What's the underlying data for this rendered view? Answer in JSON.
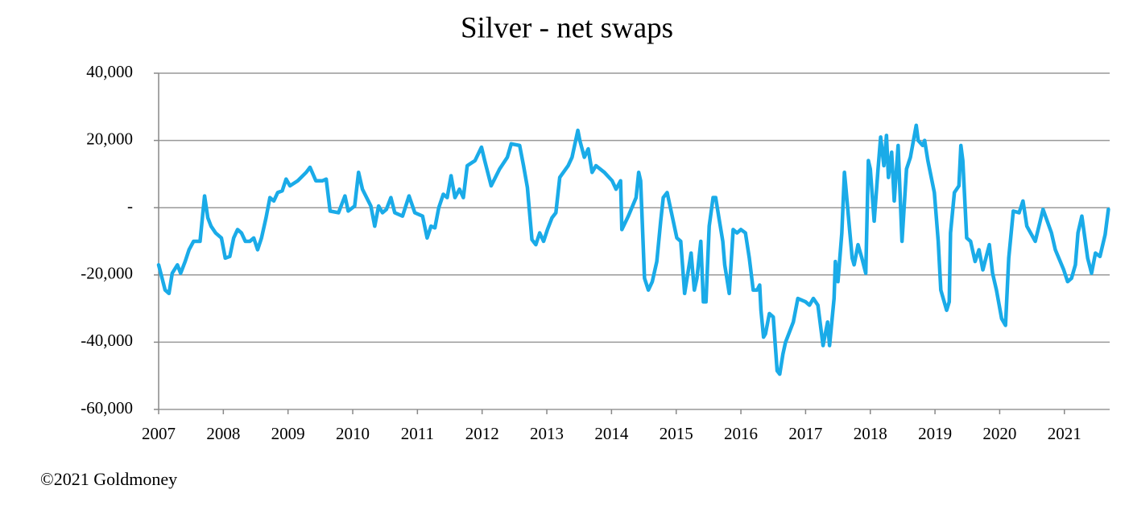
{
  "chart_data": {
    "type": "line",
    "title": "Silver - net swaps",
    "source": "©2021 Goldmoney",
    "color": "#1aabe8",
    "grid": true,
    "xlim": [
      2007,
      2021.7
    ],
    "xticks": [
      2007,
      2008,
      2009,
      2010,
      2011,
      2012,
      2013,
      2014,
      2015,
      2016,
      2017,
      2018,
      2019,
      2020,
      2021
    ],
    "ylim": [
      -60000,
      40000
    ],
    "yticks": [
      {
        "value": -60000,
        "label": "-60,000"
      },
      {
        "value": -40000,
        "label": "-40,000"
      },
      {
        "value": -20000,
        "label": "-20,000"
      },
      {
        "value": 0,
        "label": "-"
      },
      {
        "value": 20000,
        "label": "20,000"
      },
      {
        "value": 40000,
        "label": "40,000"
      }
    ],
    "x": [
      2007.0,
      2007.1,
      2007.16,
      2007.21,
      2007.29,
      2007.34,
      2007.41,
      2007.47,
      2007.54,
      2007.64,
      2007.71,
      2007.76,
      2007.81,
      2007.88,
      2007.97,
      2008.03,
      2008.1,
      2008.16,
      2008.22,
      2008.28,
      2008.34,
      2008.41,
      2008.47,
      2008.53,
      2008.59,
      2008.66,
      2008.72,
      2008.78,
      2008.84,
      2008.91,
      2008.97,
      2009.03,
      2009.15,
      2009.28,
      2009.34,
      2009.43,
      2009.53,
      2009.59,
      2009.65,
      2009.78,
      2009.88,
      2009.93,
      2010.03,
      2010.09,
      2010.15,
      2010.28,
      2010.34,
      2010.4,
      2010.46,
      2010.52,
      2010.59,
      2010.65,
      2010.77,
      2010.87,
      2010.96,
      2011.08,
      2011.15,
      2011.21,
      2011.27,
      2011.33,
      2011.4,
      2011.46,
      2011.52,
      2011.58,
      2011.65,
      2011.71,
      2011.77,
      2011.89,
      2011.99,
      2012.04,
      2012.14,
      2012.27,
      2012.39,
      2012.45,
      2012.58,
      2012.64,
      2012.7,
      2012.77,
      2012.83,
      2012.89,
      2012.95,
      2013.01,
      2013.08,
      2013.14,
      2013.2,
      2013.33,
      2013.39,
      2013.48,
      2013.51,
      2013.58,
      2013.64,
      2013.7,
      2013.76,
      2013.89,
      2014.01,
      2014.07,
      2014.14,
      2014.16,
      2014.26,
      2014.38,
      2014.42,
      2014.45,
      2014.51,
      2014.57,
      2014.63,
      2014.7,
      2014.76,
      2014.8,
      2014.86,
      2014.91,
      2015.01,
      2015.07,
      2015.13,
      2015.23,
      2015.28,
      2015.32,
      2015.38,
      2015.42,
      2015.46,
      2015.51,
      2015.57,
      2015.61,
      2015.66,
      2015.72,
      2015.75,
      2015.82,
      2015.88,
      2015.94,
      2016.0,
      2016.07,
      2016.13,
      2016.19,
      2016.25,
      2016.29,
      2016.31,
      2016.35,
      2016.38,
      2016.44,
      2016.5,
      2016.56,
      2016.6,
      2016.65,
      2016.69,
      2016.81,
      2016.88,
      2017.0,
      2017.06,
      2017.12,
      2017.19,
      2017.27,
      2017.34,
      2017.37,
      2017.44,
      2017.46,
      2017.5,
      2017.56,
      2017.6,
      2017.62,
      2017.68,
      2017.72,
      2017.75,
      2017.81,
      2017.87,
      2017.93,
      2017.97,
      2018.0,
      2018.06,
      2018.12,
      2018.16,
      2018.21,
      2018.25,
      2018.28,
      2018.33,
      2018.37,
      2018.43,
      2018.49,
      2018.56,
      2018.62,
      2018.71,
      2018.74,
      2018.81,
      2018.84,
      2018.89,
      2018.99,
      2019.05,
      2019.09,
      2019.18,
      2019.22,
      2019.24,
      2019.3,
      2019.37,
      2019.4,
      2019.43,
      2019.49,
      2019.55,
      2019.62,
      2019.68,
      2019.74,
      2019.84,
      2019.89,
      2019.95,
      2020.03,
      2020.09,
      2020.14,
      2020.21,
      2020.3,
      2020.36,
      2020.42,
      2020.55,
      2020.67,
      2020.8,
      2020.86,
      2020.99,
      2021.05,
      2021.11,
      2021.17,
      2021.21,
      2021.27,
      2021.36,
      2021.42,
      2021.48,
      2021.55,
      2021.63,
      2021.68
    ],
    "values": [
      -17000,
      -24500,
      -25500,
      -19500,
      -17000,
      -19500,
      -16000,
      -12500,
      -10000,
      -10000,
      3500,
      -3000,
      -5500,
      -7500,
      -9000,
      -15000,
      -14500,
      -9000,
      -6500,
      -7500,
      -10000,
      -10000,
      -9000,
      -12500,
      -9000,
      -3000,
      3000,
      2000,
      4500,
      5000,
      8500,
      6500,
      8000,
      10500,
      12000,
      8000,
      8000,
      8500,
      -1000,
      -1500,
      3500,
      -1000,
      500,
      10500,
      5500,
      500,
      -5500,
      500,
      -1500,
      -500,
      3000,
      -1500,
      -2500,
      3500,
      -1500,
      -2500,
      -9000,
      -5500,
      -6000,
      0,
      4000,
      3000,
      9500,
      3000,
      5500,
      3000,
      12500,
      14000,
      18000,
      14000,
      6500,
      11500,
      15000,
      19000,
      18500,
      12500,
      6000,
      -9500,
      -11000,
      -7500,
      -10000,
      -6500,
      -3000,
      -1500,
      9000,
      12500,
      15000,
      23000,
      20000,
      15000,
      17500,
      10500,
      12500,
      10500,
      8000,
      5500,
      8000,
      -6500,
      -2500,
      3000,
      10500,
      8000,
      -21000,
      -24500,
      -22000,
      -16000,
      -4000,
      3000,
      4500,
      0,
      -9000,
      -10000,
      -25500,
      -13500,
      -24500,
      -21000,
      -10000,
      -28000,
      -28000,
      -5500,
      3000,
      3000,
      -3000,
      -10000,
      -17000,
      -25500,
      -6500,
      -7500,
      -6500,
      -7500,
      -15000,
      -24500,
      -24500,
      -23000,
      -30500,
      -38500,
      -37500,
      -31500,
      -32500,
      -48500,
      -49500,
      -43500,
      -40000,
      -34000,
      -27000,
      -28000,
      -29000,
      -27000,
      -29000,
      -41000,
      -34000,
      -41000,
      -27000,
      -16000,
      -22000,
      -7500,
      10500,
      6500,
      -6500,
      -15000,
      -17000,
      -11000,
      -15000,
      -19500,
      14000,
      11500,
      -4000,
      11500,
      21000,
      12500,
      21500,
      9000,
      16500,
      2000,
      18500,
      -10000,
      11500,
      15000,
      24500,
      20000,
      18500,
      20000,
      14000,
      4500,
      -10000,
      -24500,
      -30500,
      -28000,
      -7500,
      4500,
      6500,
      18500,
      14000,
      -9000,
      -10000,
      -16000,
      -12500,
      -18500,
      -11000,
      -19500,
      -24500,
      -33000,
      -35000,
      -15000,
      -1000,
      -1500,
      2000,
      -5500,
      -10000,
      -500,
      -7500,
      -12500,
      -18500,
      -22000,
      -21000,
      -17000,
      -7500,
      -2500,
      -15000,
      -19500,
      -13500,
      -14500,
      -8000,
      -500
    ]
  }
}
